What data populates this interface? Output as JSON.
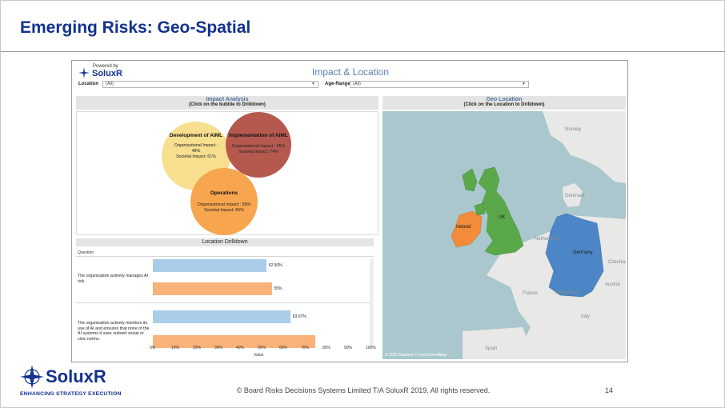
{
  "slide": {
    "title": "Emerging Risks: Geo-Spatial",
    "copyright": "© Board Risks Decisions Systems Limited T/A SoluxR 2019. All rights reserved.",
    "page_number": "14",
    "footer_brand": "SoluxR",
    "footer_tagline": "ENHANCING STRATEGY EXECUTION"
  },
  "dashboard": {
    "powered_by": "Powered by",
    "brand": "SoluxR",
    "title": "Impact & Location",
    "filters": {
      "location_label": "Location",
      "location_value": "(All)",
      "age_label": "Age-Range",
      "age_value": "(All)"
    },
    "impact": {
      "title": "Impact Analysis",
      "subtitle": "(Click on the bubble to Drilldown)",
      "bubbles": [
        {
          "title": "Development of AIML",
          "line1": "Organisational Impact :",
          "line2": "48%",
          "line3": "Societal Impact: 61%",
          "color": "#f7df8f"
        },
        {
          "title": "Implementation of AIML",
          "line1": "Organisational Impact : 55%",
          "line2": "Societal Impact: 74%",
          "line3": "",
          "color": "#b5594f"
        },
        {
          "title": "Operations",
          "line1": "Organisational Impact : 58%",
          "line2": "Societal Impact: 65%",
          "line3": "",
          "color": "#f7a64f"
        }
      ]
    },
    "geo": {
      "title": "Geo Location",
      "subtitle": "(Click on the Location to Drilldown)",
      "labels": {
        "norway": "Norway",
        "denmark": "Denmark",
        "uk": "UK",
        "ireland": "Ireland",
        "netherlands": "Netherlands",
        "germany": "Germany",
        "czechia": "Czechia",
        "austria": "Austria",
        "switzerland": "Switzerland",
        "france": "France",
        "italy": "Italy",
        "spain": "Spain"
      },
      "copyright": "© 2020 Mapbox © OpenStreetMap",
      "colors": {
        "sea": "#a9c7cd",
        "land": "#e8e8e6",
        "uk": "#5aa84a",
        "ireland": "#f28c3b",
        "germany": "#4d86c6"
      }
    },
    "drilldown": {
      "title": "Location Drilldown",
      "question_header": "Question",
      "x_label": "Value",
      "questions": [
        {
          "text": "The organization actively manages AI risk."
        },
        {
          "text": "The organization actively monitors its use of AI and ensures that none of the AI systems it uses subvert social or civic norms."
        }
      ]
    }
  },
  "chart_data": {
    "type": "bar",
    "title": "Location Drilldown",
    "xlabel": "Value",
    "ylabel": "Question",
    "categories": [
      "The organization actively manages AI risk.",
      "The organization actively monitors its use of AI and ensures that none of the AI systems it uses subvert social or civic norms."
    ],
    "series": [
      {
        "values": [
          52.5,
          63.67
        ],
        "labels": [
          "52.50%",
          "63.67%"
        ],
        "color": "#a9cce9"
      },
      {
        "values": [
          55,
          75
        ],
        "labels": [
          "55%",
          ""
        ],
        "color": "#f9b27a"
      }
    ],
    "xlim": [
      0,
      100
    ],
    "xticks": [
      "0%",
      "10%",
      "20%",
      "30%",
      "40%",
      "50%",
      "60%",
      "70%",
      "80%",
      "90%",
      "100%"
    ]
  }
}
